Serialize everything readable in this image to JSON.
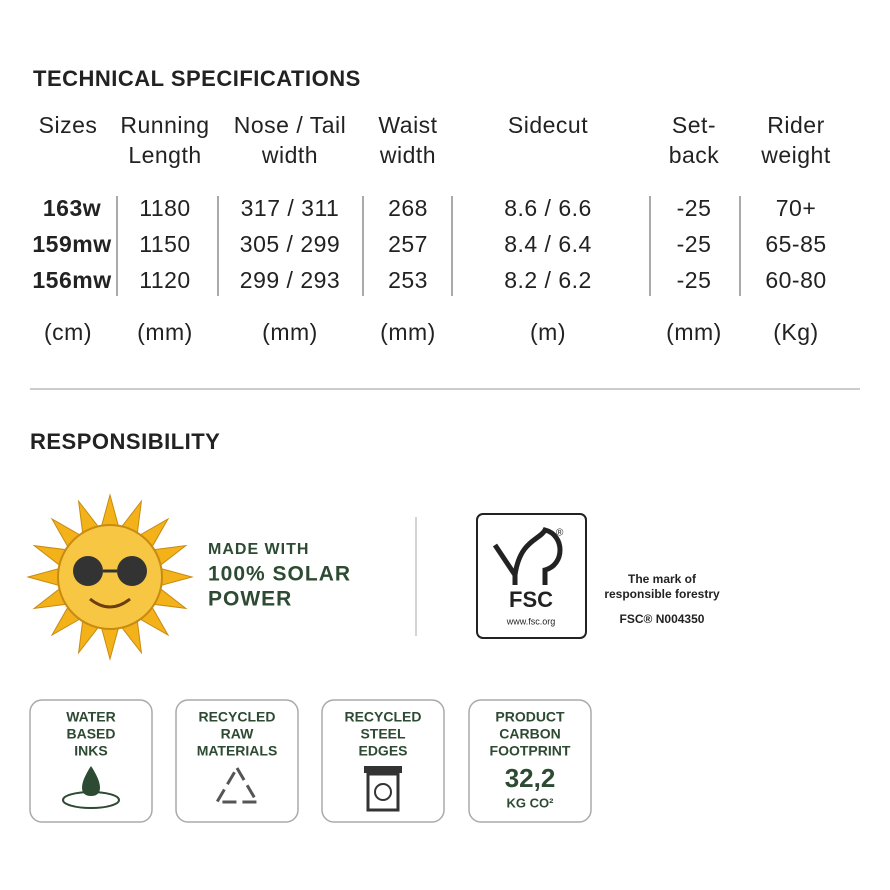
{
  "specs": {
    "title": "TECHNICAL SPECIFICATIONS",
    "headers": [
      [
        "Sizes"
      ],
      [
        "Running",
        "Length"
      ],
      [
        "Nose / Tail",
        "width"
      ],
      [
        "Waist",
        "width"
      ],
      [
        "Sidecut"
      ],
      [
        "Set-",
        "back"
      ],
      [
        "Rider",
        "weight"
      ]
    ],
    "rows": [
      [
        "163w",
        "1180",
        "317 / 311",
        "268",
        "8.6 / 6.6",
        "-25",
        "70+"
      ],
      [
        "159mw",
        "1150",
        "305 / 299",
        "257",
        "8.4 / 6.4",
        "-25",
        "65-85"
      ],
      [
        "156mw",
        "1120",
        "299 / 293",
        "253",
        "8.2 / 6.2",
        "-25",
        "60-80"
      ]
    ],
    "units": [
      "(cm)",
      "(mm)",
      "(mm)",
      "(mm)",
      "(m)",
      "(mm)",
      "(Kg)"
    ]
  },
  "responsibility": {
    "title": "RESPONSIBILITY",
    "solar": [
      "MADE WITH",
      "100% SOLAR",
      "POWER"
    ],
    "fsc": {
      "logo": "FSC",
      "registered": "®",
      "url": "www.fsc.org",
      "mark": [
        "The mark of",
        "responsible forestry"
      ],
      "code": "FSC® N004350"
    },
    "badges": [
      {
        "lines": [
          "WATER",
          "BASED",
          "INKS"
        ]
      },
      {
        "lines": [
          "RECYCLED",
          "RAW",
          "MATERIALS"
        ]
      },
      {
        "lines": [
          "RECYCLED",
          "STEEL",
          "EDGES"
        ]
      },
      {
        "lines": [
          "PRODUCT",
          "CARBON",
          "FOOTPRINT"
        ],
        "value": "32,2",
        "unit": "KG CO²"
      }
    ]
  }
}
